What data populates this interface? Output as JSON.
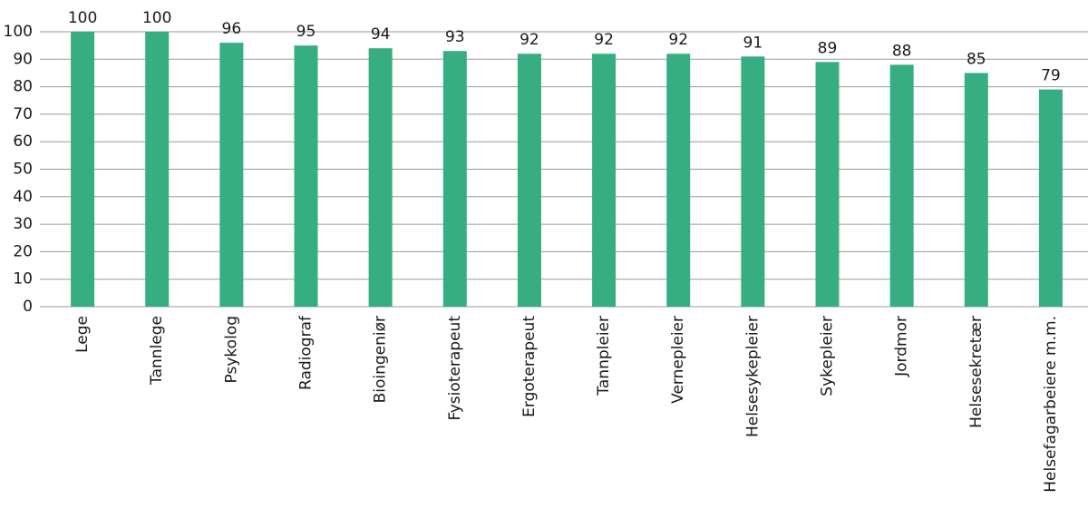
{
  "chart_data": {
    "type": "bar",
    "categories": [
      "Lege",
      "Tannlege",
      "Psykolog",
      "Radiograf",
      "Bioingeniør",
      "Fysioterapeut",
      "Ergoterapeut",
      "Tannpleier",
      "Vernepleier",
      "Helsesykepleier",
      "Sykepleier",
      "Jordmor",
      "Helsesekretær",
      "Helsefagarbeiere m.m."
    ],
    "values": [
      100,
      100,
      96,
      95,
      94,
      93,
      92,
      92,
      92,
      91,
      89,
      88,
      85,
      79
    ],
    "color": "#36ae82",
    "ylim": [
      0,
      100
    ],
    "yticks": [
      0,
      10,
      20,
      30,
      40,
      50,
      60,
      70,
      80,
      90,
      100
    ],
    "grid": true
  }
}
